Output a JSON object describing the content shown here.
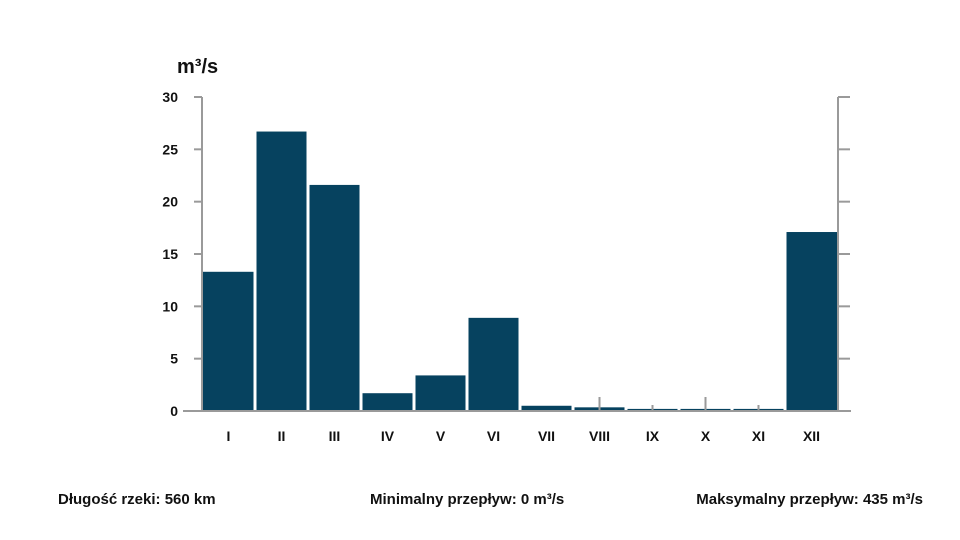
{
  "chart_data": {
    "type": "bar",
    "title": "",
    "xlabel": "",
    "ylabel": "m³/s",
    "ylim": [
      0,
      30
    ],
    "yticks": [
      0,
      5,
      10,
      15,
      20,
      25,
      30
    ],
    "categories": [
      "I",
      "II",
      "III",
      "IV",
      "V",
      "VI",
      "VII",
      "VIII",
      "IX",
      "X",
      "XI",
      "XII"
    ],
    "values": [
      13.3,
      26.7,
      21.6,
      1.7,
      3.4,
      8.9,
      0.5,
      0.35,
      0.2,
      0.2,
      0.2,
      17.1
    ],
    "bar_color": "#06425f",
    "axis_color": "#9a9a9a",
    "grid": false
  },
  "footer": {
    "length": "Długość rzeki: 560 km",
    "min_flow": "Minimalny przepływ: 0 m³/s",
    "max_flow": "Maksymalny przepływ: 435 m³/s"
  }
}
